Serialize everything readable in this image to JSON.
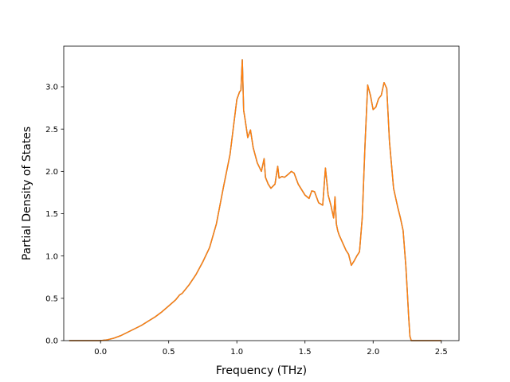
{
  "chart_data": {
    "type": "line",
    "xlabel": "Frequency (THz)",
    "ylabel": "Partial Density of States",
    "xlim": [
      -0.27,
      2.63
    ],
    "ylim": [
      0.0,
      3.48
    ],
    "xticks": [
      0.0,
      0.5,
      1.0,
      1.5,
      2.0,
      2.5
    ],
    "xtick_labels": [
      "0.0",
      "0.5",
      "1.0",
      "1.5",
      "2.0",
      "2.5"
    ],
    "yticks": [
      0.0,
      0.5,
      1.0,
      1.5,
      2.0,
      2.5,
      3.0
    ],
    "ytick_labels": [
      "0.0",
      "0.5",
      "1.0",
      "1.5",
      "2.0",
      "2.5",
      "3.0"
    ],
    "grid": false,
    "series": [
      {
        "color": "#1f77b4",
        "x": [
          -0.23,
          0.0,
          0.05,
          0.1,
          0.15,
          0.2,
          0.25,
          0.3,
          0.35,
          0.4,
          0.45,
          0.5,
          0.55,
          0.58,
          0.6,
          0.65,
          0.7,
          0.75,
          0.8,
          0.85,
          0.9,
          0.95,
          1.0,
          1.02,
          1.03,
          1.04,
          1.05,
          1.06,
          1.08,
          1.1,
          1.12,
          1.15,
          1.18,
          1.2,
          1.21,
          1.23,
          1.25,
          1.28,
          1.3,
          1.31,
          1.33,
          1.35,
          1.38,
          1.4,
          1.42,
          1.45,
          1.5,
          1.53,
          1.55,
          1.57,
          1.6,
          1.63,
          1.65,
          1.67,
          1.69,
          1.71,
          1.72,
          1.73,
          1.74,
          1.75,
          1.8,
          1.82,
          1.84,
          1.86,
          1.88,
          1.9,
          1.92,
          1.94,
          1.96,
          1.98,
          2.0,
          2.02,
          2.04,
          2.06,
          2.08,
          2.1,
          2.12,
          2.15,
          2.18,
          2.2,
          2.22,
          2.24,
          2.25,
          2.26,
          2.27,
          2.28,
          2.3,
          2.5
        ],
        "y": [
          0.0,
          0.0,
          0.01,
          0.03,
          0.06,
          0.1,
          0.14,
          0.18,
          0.23,
          0.28,
          0.34,
          0.41,
          0.48,
          0.54,
          0.56,
          0.66,
          0.78,
          0.93,
          1.1,
          1.38,
          1.8,
          2.2,
          2.85,
          2.94,
          2.96,
          3.32,
          2.72,
          2.62,
          2.4,
          2.49,
          2.28,
          2.1,
          2.0,
          2.15,
          1.93,
          1.85,
          1.8,
          1.85,
          2.06,
          1.92,
          1.94,
          1.93,
          1.97,
          2.0,
          1.98,
          1.85,
          1.72,
          1.68,
          1.77,
          1.76,
          1.63,
          1.6,
          2.04,
          1.72,
          1.6,
          1.45,
          1.7,
          1.38,
          1.3,
          1.25,
          1.07,
          1.02,
          0.89,
          0.94,
          1.0,
          1.05,
          1.45,
          2.3,
          3.02,
          2.9,
          2.73,
          2.76,
          2.86,
          2.9,
          3.05,
          2.98,
          2.35,
          1.8,
          1.58,
          1.45,
          1.3,
          0.88,
          0.6,
          0.3,
          0.05,
          0.0,
          0.0,
          0.0
        ]
      },
      {
        "color": "#ff7f0e",
        "x": [
          -0.23,
          0.0,
          0.05,
          0.1,
          0.15,
          0.2,
          0.25,
          0.3,
          0.35,
          0.4,
          0.45,
          0.5,
          0.55,
          0.58,
          0.6,
          0.65,
          0.7,
          0.75,
          0.8,
          0.85,
          0.9,
          0.95,
          1.0,
          1.02,
          1.03,
          1.04,
          1.05,
          1.06,
          1.08,
          1.1,
          1.12,
          1.15,
          1.18,
          1.2,
          1.21,
          1.23,
          1.25,
          1.28,
          1.3,
          1.31,
          1.33,
          1.35,
          1.38,
          1.4,
          1.42,
          1.45,
          1.5,
          1.53,
          1.55,
          1.57,
          1.6,
          1.63,
          1.65,
          1.67,
          1.69,
          1.71,
          1.72,
          1.73,
          1.74,
          1.75,
          1.8,
          1.82,
          1.84,
          1.86,
          1.88,
          1.9,
          1.92,
          1.94,
          1.96,
          1.98,
          2.0,
          2.02,
          2.04,
          2.06,
          2.08,
          2.1,
          2.12,
          2.15,
          2.18,
          2.2,
          2.22,
          2.24,
          2.25,
          2.26,
          2.27,
          2.28,
          2.3,
          2.5
        ],
        "y": [
          0.0,
          0.0,
          0.01,
          0.03,
          0.06,
          0.1,
          0.14,
          0.18,
          0.23,
          0.28,
          0.34,
          0.41,
          0.48,
          0.54,
          0.56,
          0.66,
          0.78,
          0.93,
          1.1,
          1.38,
          1.8,
          2.2,
          2.85,
          2.94,
          2.96,
          3.32,
          2.72,
          2.62,
          2.4,
          2.49,
          2.28,
          2.1,
          2.0,
          2.15,
          1.93,
          1.85,
          1.8,
          1.85,
          2.06,
          1.92,
          1.94,
          1.93,
          1.97,
          2.0,
          1.98,
          1.85,
          1.72,
          1.68,
          1.77,
          1.76,
          1.63,
          1.6,
          2.04,
          1.72,
          1.6,
          1.45,
          1.7,
          1.38,
          1.3,
          1.25,
          1.07,
          1.02,
          0.89,
          0.94,
          1.0,
          1.05,
          1.45,
          2.3,
          3.02,
          2.9,
          2.73,
          2.76,
          2.86,
          2.9,
          3.05,
          2.98,
          2.35,
          1.8,
          1.58,
          1.45,
          1.3,
          0.88,
          0.6,
          0.3,
          0.05,
          0.0,
          0.0,
          0.0
        ]
      }
    ]
  }
}
